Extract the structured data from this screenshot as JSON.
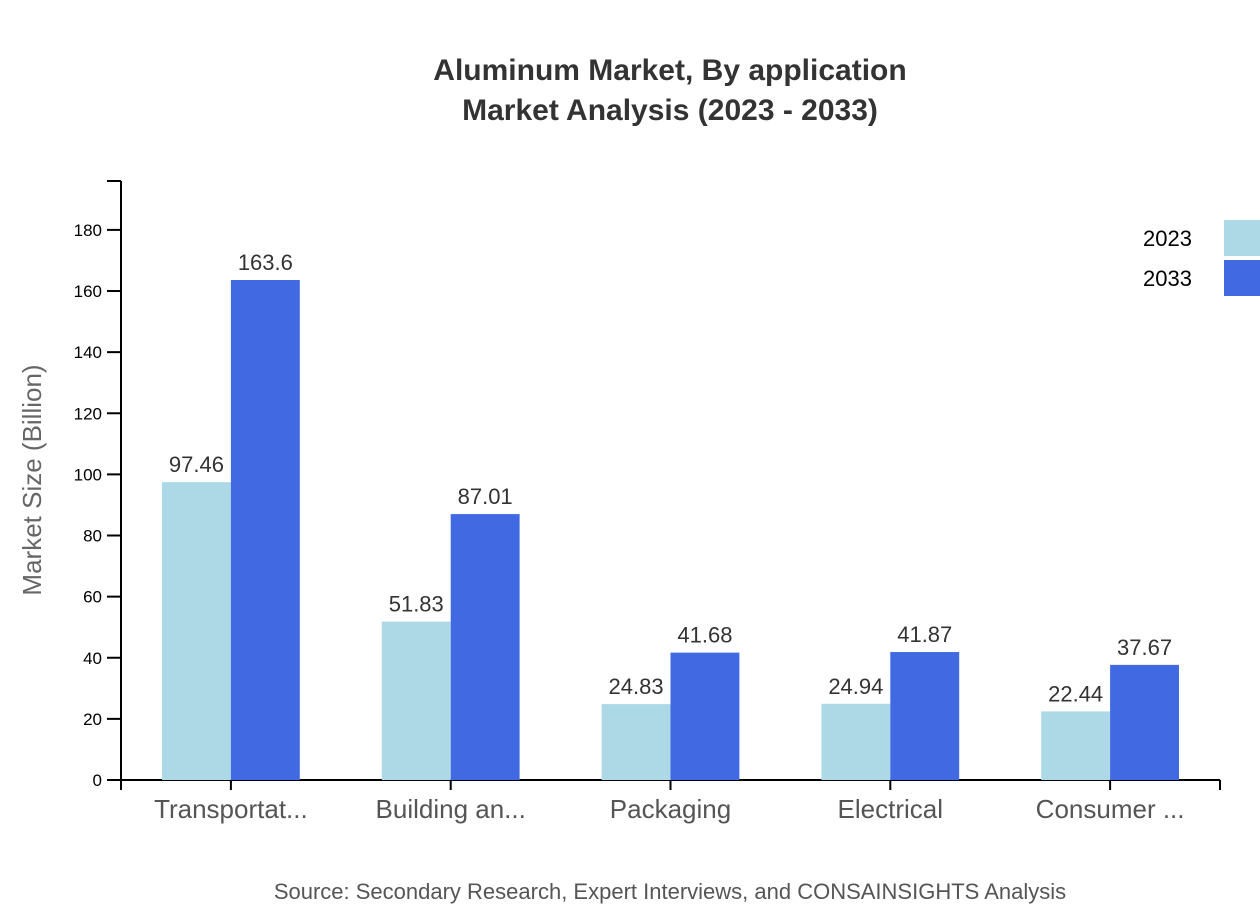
{
  "chart_data": {
    "type": "bar",
    "title_lines": [
      "Aluminum Market, By application",
      "Market Analysis (2023 - 2033)"
    ],
    "xlabel": "",
    "ylabel": "Market Size (Billion)",
    "ylim": [
      0,
      196
    ],
    "yticks": [
      0,
      20,
      40,
      60,
      80,
      100,
      120,
      140,
      160,
      180
    ],
    "categories": [
      "Transportat...",
      "Building an...",
      "Packaging",
      "Electrical",
      "Consumer ..."
    ],
    "series": [
      {
        "name": "2023",
        "color": "#add8e6",
        "values": [
          97.46,
          51.83,
          24.83,
          24.94,
          22.44
        ]
      },
      {
        "name": "2033",
        "color": "#4169e1",
        "values": [
          163.6,
          87.01,
          41.68,
          41.87,
          37.67
        ]
      }
    ],
    "legend_position": "top-right",
    "grid": false,
    "source": "Source: Secondary Research, Expert Interviews, and CONSAINSIGHTS Analysis"
  }
}
